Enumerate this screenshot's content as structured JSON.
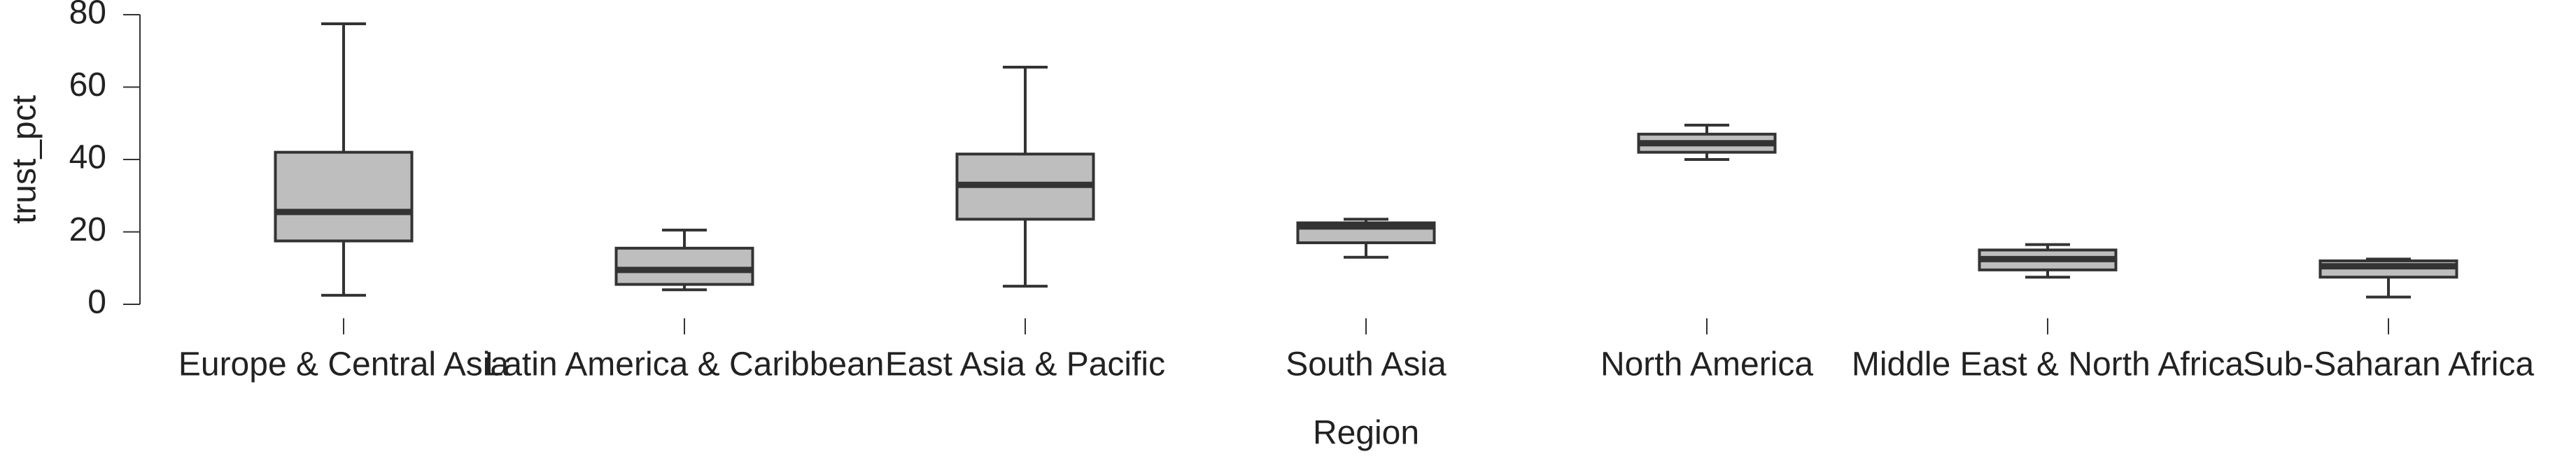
{
  "chart_data": {
    "type": "box",
    "xlabel": "Region",
    "ylabel": "trust_pct",
    "ylim": [
      0,
      80
    ],
    "yticks": [
      0,
      20,
      40,
      60,
      80
    ],
    "grid": false,
    "legend": "none",
    "colors": {
      "box_fill": "#bebebe",
      "stroke": "#333333"
    },
    "categories": [
      "Europe & Central Asia",
      "Latin America & Caribbean",
      "East Asia & Pacific",
      "South Asia",
      "North America",
      "Middle East & North Africa",
      "Sub-Saharan Africa"
    ],
    "boxes": [
      {
        "min": 2.5,
        "q1": 17.5,
        "median": 25.5,
        "q3": 42,
        "max": 77.5
      },
      {
        "min": 4,
        "q1": 5.5,
        "median": 9.5,
        "q3": 15.5,
        "max": 20.5
      },
      {
        "min": 5,
        "q1": 23.5,
        "median": 33,
        "q3": 41.5,
        "max": 65.5
      },
      {
        "min": 13,
        "q1": 17,
        "median": 21.5,
        "q3": 22.5,
        "max": 23.5
      },
      {
        "min": 40,
        "q1": 42,
        "median": 44.5,
        "q3": 47,
        "max": 49.5
      },
      {
        "min": 7.5,
        "q1": 9.5,
        "median": 12.5,
        "q3": 15,
        "max": 16.5
      },
      {
        "min": 2,
        "q1": 7.5,
        "median": 10.5,
        "q3": 12,
        "max": 12.5
      }
    ]
  }
}
